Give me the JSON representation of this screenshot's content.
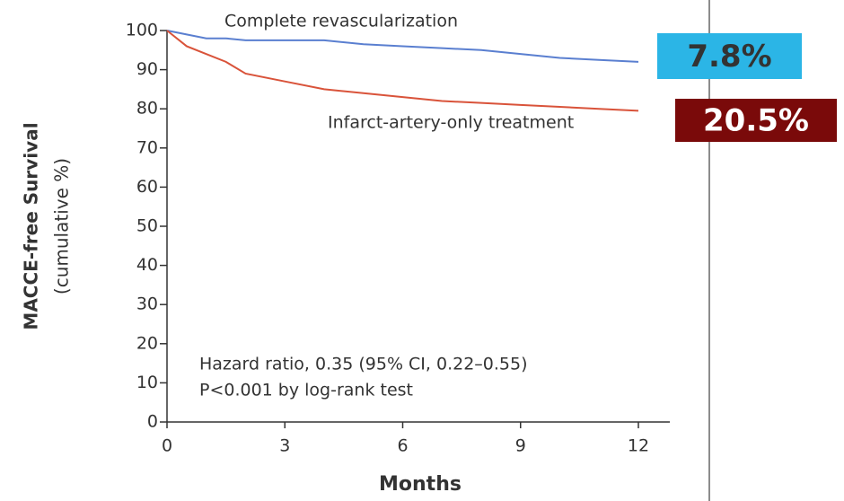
{
  "chart_data": {
    "type": "line",
    "x_label": "Months",
    "y_label": [
      "MACCE-free Survival",
      "(cumulative %)"
    ],
    "x": [
      0,
      0.5,
      1,
      1.5,
      2,
      3,
      4,
      5,
      6,
      7,
      8,
      9,
      10,
      11,
      12
    ],
    "series": [
      {
        "name": "Complete revascularization",
        "color": "#5a7fd0",
        "end_label": "7.8%",
        "end_label_color": "#2bb5e6",
        "values": [
          100,
          99,
          98,
          98,
          97.5,
          97.5,
          97.5,
          96.5,
          96,
          95.5,
          95,
          94,
          93,
          92.5,
          92
        ]
      },
      {
        "name": "Infarct-artery-only treatment",
        "color": "#d9533a",
        "end_label": "20.5%",
        "end_label_color": "#7a0a0a",
        "values": [
          100,
          96,
          94,
          92,
          89,
          87,
          85,
          84,
          83,
          82,
          81.5,
          81,
          80.5,
          80,
          79.5
        ]
      }
    ],
    "annotations": [
      "Hazard ratio, 0.35 (95% CI, 0.22–0.55)",
      "P<0.001 by log-rank test"
    ],
    "xlim": [
      0,
      12.8
    ],
    "xticks": [
      0,
      3,
      6,
      9,
      12
    ],
    "ylim": [
      0,
      100
    ],
    "yticks": [
      0,
      10,
      20,
      30,
      40,
      50,
      60,
      70,
      80,
      90,
      100
    ]
  }
}
